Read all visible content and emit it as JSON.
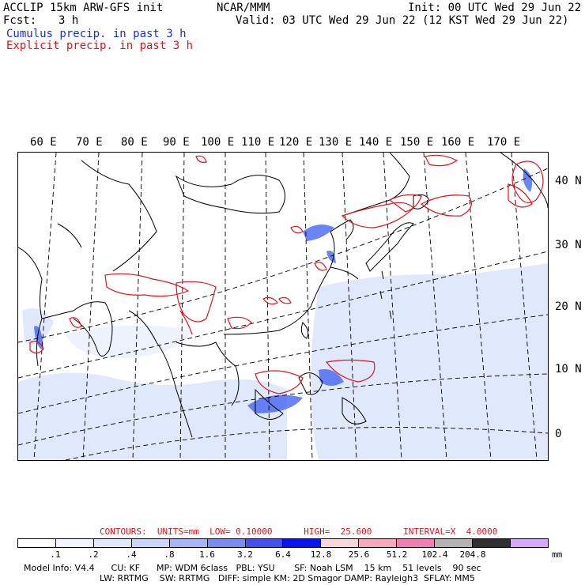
{
  "header": {
    "model_line": "ACCLIP 15km ARW-GFS init",
    "forecast_label": "Fcst:",
    "forecast_value": "3 h",
    "center": "NCAR/MMM",
    "init": "Init: 00 UTC Wed 29 Jun 22",
    "valid": "Valid: 03 UTC Wed 29 Jun 22 (12 KST Wed 29 Jun 22)",
    "legend_cumulus": "Cumulus precip. in past 3 h",
    "legend_explicit": "Explicit precip. in past 3 h"
  },
  "map": {
    "lon_labels": [
      "60 E",
      "70 E",
      "80 E",
      "90 E",
      "100 E",
      "110 E",
      "120 E",
      "130 E",
      "140 E",
      "150 E",
      "160 E",
      "170 E"
    ],
    "lat_labels": [
      "40 N",
      "30 N",
      "20 N",
      "10 N",
      "0"
    ],
    "colors": {
      "land_outline": "#000000",
      "gridline": "#000000",
      "cumulus": "#3a5cf0",
      "explicit": "#e8101a",
      "light_fill": "#dde6fb"
    }
  },
  "contours_text": "CONTOURS:  UNITS=mm  LOW= 0.10000      HIGH=  25.600      INTERVAL=X  4.0000",
  "colorbar": {
    "labels": [
      ".1",
      ".2",
      ".4",
      ".8",
      "1.6",
      "3.2",
      "6.4",
      "12.8",
      "25.6",
      "51.2",
      "102.4",
      "204.8"
    ],
    "units": "mm",
    "colors": [
      "#ffffff",
      "#f4f6ff",
      "#e1e9fc",
      "#c9d6f8",
      "#a6b6f4",
      "#7b8cf0",
      "#4450ee",
      "#0a14f0",
      "#f8d8dc",
      "#f6a8bc",
      "#f080b0",
      "#b4b4b4",
      "#303030",
      "#d8a8f8"
    ]
  },
  "footer": {
    "line1": "Model Info: V4.4      CU: KF      MP: WDM 6class   PBL: YSU       SF: Noah LSM    15 km    51 levels    90 sec",
    "line2": "LW: RRTMG    SW: RRTMG   DIFF: simple KM: 2D Smagor DAMP: Rayleigh3  SFLAY: MM5"
  }
}
